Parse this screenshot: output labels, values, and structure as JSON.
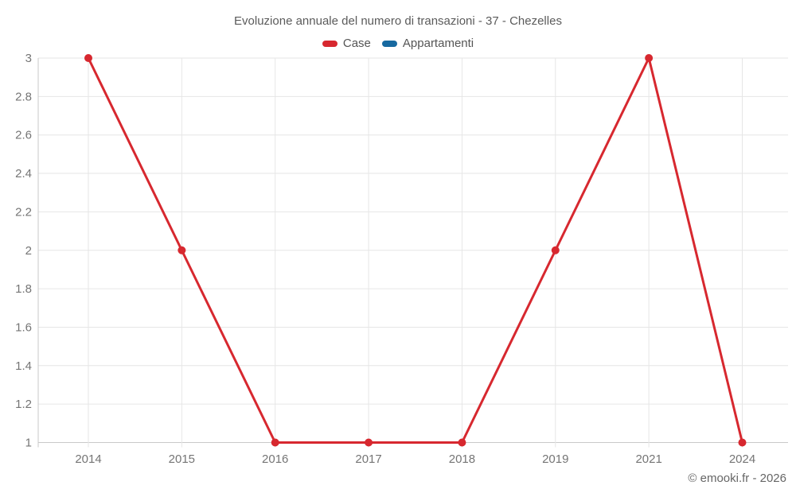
{
  "footer": {
    "copyright": "© emooki.fr - 2026"
  },
  "colors": {
    "grid": "#e6e6e6",
    "axis": "#c9c9c9",
    "tick_label": "#757575",
    "series_case": "#d7282f",
    "series_appartamenti": "#1769a0"
  },
  "chart_data": {
    "type": "line",
    "title": "Evoluzione annuale del numero di transazioni - 37 - Chezelles",
    "categories": [
      "2014",
      "2015",
      "2016",
      "2017",
      "2018",
      "2019",
      "2021",
      "2024"
    ],
    "series": [
      {
        "name": "Case",
        "color": "#d7282f",
        "values": [
          3,
          2,
          1,
          1,
          1,
          2,
          3,
          1
        ]
      },
      {
        "name": "Appartamenti",
        "color": "#1769a0",
        "values": []
      }
    ],
    "xlabel": "",
    "ylabel": "",
    "ylim": [
      1,
      3
    ],
    "yticks": [
      1,
      1.2,
      1.4,
      1.6,
      1.8,
      2,
      2.2,
      2.4,
      2.6,
      2.8,
      3
    ],
    "grid": true,
    "legend_position": "top",
    "marker_radius": 5,
    "line_width": 3
  }
}
